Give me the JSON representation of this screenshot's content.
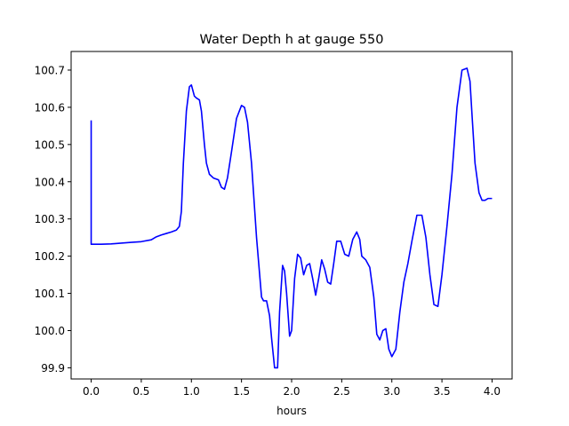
{
  "chart_data": {
    "type": "line",
    "title": "Water Depth h at gauge 550",
    "xlabel": "hours",
    "ylabel": "",
    "xlim": [
      -0.2,
      4.2
    ],
    "ylim": [
      99.87,
      100.75
    ],
    "xticks": [
      0.0,
      0.5,
      1.0,
      1.5,
      2.0,
      2.5,
      3.0,
      3.5,
      4.0
    ],
    "xtick_labels": [
      "0.0",
      "0.5",
      "1.0",
      "1.5",
      "2.0",
      "2.5",
      "3.0",
      "3.5",
      "4.0"
    ],
    "yticks": [
      99.9,
      100.0,
      100.1,
      100.2,
      100.3,
      100.4,
      100.5,
      100.6,
      100.7
    ],
    "ytick_labels": [
      "99.9",
      "100.0",
      "100.1",
      "100.2",
      "100.3",
      "100.4",
      "100.5",
      "100.6",
      "100.7"
    ],
    "grid": false,
    "series": [
      {
        "color": "#0000ff",
        "x": [
          0.0,
          0.0,
          0.005,
          0.1,
          0.2,
          0.3,
          0.4,
          0.5,
          0.6,
          0.65,
          0.7,
          0.75,
          0.8,
          0.85,
          0.88,
          0.9,
          0.92,
          0.95,
          0.98,
          1.0,
          1.03,
          1.05,
          1.08,
          1.1,
          1.13,
          1.15,
          1.18,
          1.22,
          1.27,
          1.3,
          1.33,
          1.36,
          1.4,
          1.45,
          1.5,
          1.53,
          1.56,
          1.6,
          1.65,
          1.7,
          1.72,
          1.75,
          1.78,
          1.8,
          1.83,
          1.86,
          1.88,
          1.91,
          1.93,
          1.95,
          1.98,
          2.0,
          2.03,
          2.06,
          2.09,
          2.12,
          2.15,
          2.18,
          2.21,
          2.24,
          2.27,
          2.3,
          2.33,
          2.36,
          2.39,
          2.42,
          2.45,
          2.49,
          2.53,
          2.57,
          2.61,
          2.65,
          2.68,
          2.7,
          2.74,
          2.78,
          2.82,
          2.85,
          2.88,
          2.91,
          2.94,
          2.97,
          3.0,
          3.04,
          3.08,
          3.12,
          3.16,
          3.2,
          3.25,
          3.3,
          3.34,
          3.38,
          3.42,
          3.46,
          3.5,
          3.55,
          3.6,
          3.65,
          3.7,
          3.75,
          3.78,
          3.8,
          3.83,
          3.87,
          3.9,
          3.93,
          3.96,
          4.0
        ],
        "y": [
          100.565,
          100.232,
          100.232,
          100.232,
          100.233,
          100.235,
          100.237,
          100.239,
          100.244,
          100.252,
          100.257,
          100.261,
          100.265,
          100.27,
          100.28,
          100.32,
          100.45,
          100.59,
          100.655,
          100.66,
          100.63,
          100.625,
          100.62,
          100.59,
          100.5,
          100.45,
          100.42,
          100.41,
          100.405,
          100.385,
          100.38,
          100.41,
          100.48,
          100.57,
          100.605,
          100.6,
          100.56,
          100.45,
          100.25,
          100.09,
          100.08,
          100.08,
          100.04,
          99.98,
          99.9,
          99.9,
          100.05,
          100.175,
          100.16,
          100.1,
          99.985,
          100.0,
          100.14,
          100.205,
          100.195,
          100.15,
          100.175,
          100.18,
          100.14,
          100.095,
          100.14,
          100.19,
          100.165,
          100.13,
          100.125,
          100.18,
          100.24,
          100.24,
          100.205,
          100.2,
          100.245,
          100.265,
          100.245,
          100.2,
          100.19,
          100.17,
          100.09,
          99.99,
          99.975,
          100.0,
          100.005,
          99.95,
          99.93,
          99.95,
          100.05,
          100.13,
          100.18,
          100.24,
          100.31,
          100.31,
          100.25,
          100.15,
          100.07,
          100.065,
          100.15,
          100.28,
          100.42,
          100.6,
          100.7,
          100.705,
          100.67,
          100.58,
          100.45,
          100.37,
          100.35,
          100.35,
          100.355,
          100.355
        ]
      }
    ]
  }
}
